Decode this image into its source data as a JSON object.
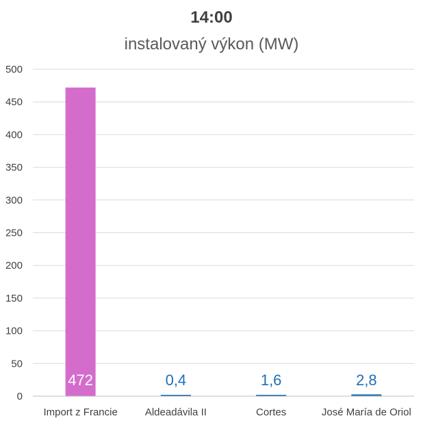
{
  "chart_data": {
    "type": "bar",
    "title": "14:00",
    "subtitle": "instalovaný výkon (MW)",
    "categories": [
      "Import z Francie",
      "Aldeadávila II",
      "Cortes",
      "José María de Oriol"
    ],
    "values": [
      472,
      0.4,
      1.6,
      2.8
    ],
    "data_labels": [
      "472",
      "0,4",
      "1,6",
      "2,8"
    ],
    "bar_colors": [
      "#d46ccc",
      "#1f6fb5",
      "#1f6fb5",
      "#1f6fb5"
    ],
    "label_colors": [
      "#ffffff",
      "#1f6fb5",
      "#1f6fb5",
      "#1f6fb5"
    ],
    "ylim": [
      0,
      500
    ],
    "yticks": [
      0,
      50,
      100,
      150,
      200,
      250,
      300,
      350,
      400,
      450,
      500
    ],
    "grid": true,
    "legend": "none"
  }
}
